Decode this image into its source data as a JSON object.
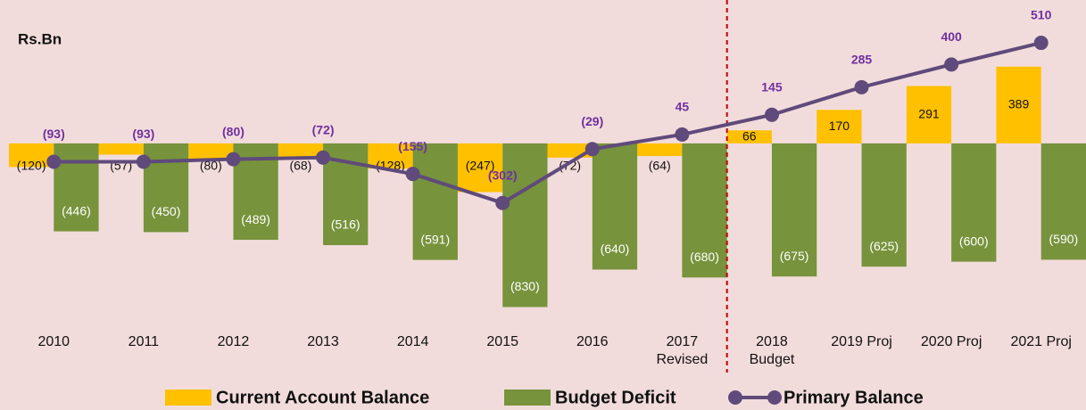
{
  "chart_data": {
    "type": "bar_line",
    "unit_label": "Rs.Bn",
    "categories": [
      "2010",
      "2011",
      "2012",
      "2013",
      "2014",
      "2015",
      "2016",
      "2017\nRevised",
      "2018\nBudget",
      "2019 Proj",
      "2020 Proj",
      "2021 Proj"
    ],
    "series": [
      {
        "name": "Current Account Balance",
        "type": "bar",
        "color": "#ffc000",
        "values": [
          -120,
          -57,
          -80,
          -68,
          -128,
          -247,
          -72,
          -64,
          66,
          170,
          291,
          389
        ],
        "value_labels": [
          "(120)",
          "(57)",
          "(80)",
          "(68)",
          "(128)",
          "(247)",
          "(72)",
          "(64)",
          "66",
          "170",
          "291",
          "389"
        ]
      },
      {
        "name": "Budget Deficit",
        "type": "bar",
        "color": "#77933c",
        "values": [
          -446,
          -450,
          -489,
          -516,
          -591,
          -830,
          -640,
          -680,
          -675,
          -625,
          -600,
          -590
        ],
        "value_labels": [
          "(446)",
          "(450)",
          "(489)",
          "(516)",
          "(591)",
          "(830)",
          "(640)",
          "(680)",
          "(675)",
          "(625)",
          "(600)",
          "(590)"
        ]
      },
      {
        "name": "Primary Balance",
        "type": "line",
        "color": "#604a7b",
        "label_color": "#7030a0",
        "values": [
          -93,
          -93,
          -80,
          -72,
          -155,
          -302,
          -29,
          45,
          145,
          285,
          400,
          510
        ],
        "value_labels": [
          "(93)",
          "(93)",
          "(80)",
          "(72)",
          "(155)",
          "(302)",
          "(29)",
          "45",
          "145",
          "285",
          "400",
          "510"
        ]
      }
    ],
    "ylim": [
      -900,
      700
    ],
    "divider_after_index": 7,
    "divider_color": "#c00000"
  }
}
